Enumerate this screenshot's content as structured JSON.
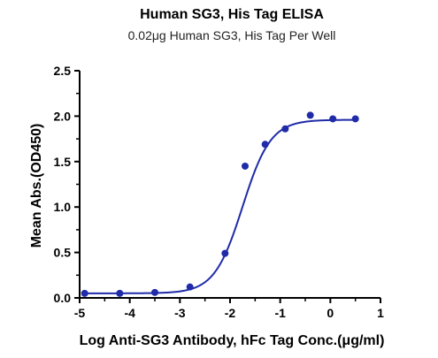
{
  "chart_data": {
    "type": "scatter",
    "title": "Human SG3, His Tag ELISA",
    "subtitle": "0.02μg Human SG3, His Tag Per Well",
    "xlabel": "Log Anti-SG3 Antibody, hFc Tag Conc.(μg/ml)",
    "ylabel": "Mean Abs.(OD450)",
    "xlim": [
      -5,
      1
    ],
    "ylim": [
      0,
      2.5
    ],
    "x_ticks": [
      -5,
      -4,
      -3,
      -2,
      -1,
      0,
      1
    ],
    "x_tick_labels": [
      "-5",
      "-4",
      "-3",
      "-2",
      "-1",
      "0",
      "1"
    ],
    "y_ticks": [
      0,
      0.5,
      1.0,
      1.5,
      2.0,
      2.5
    ],
    "y_tick_labels": [
      "0.0",
      "0.5",
      "1.0",
      "1.5",
      "2.0",
      "2.5"
    ],
    "grid": false,
    "legend": "none",
    "series": [
      {
        "color": "#1f2ba8",
        "marker": "circle",
        "x": [
          -4.9,
          -4.2,
          -3.5,
          -2.8,
          -2.1,
          -1.7,
          -1.3,
          -0.9,
          -0.4,
          0.05,
          0.5
        ],
        "y": [
          0.05,
          0.05,
          0.06,
          0.12,
          0.49,
          1.45,
          1.69,
          1.86,
          2.01,
          1.97,
          1.97
        ]
      }
    ],
    "fit": {
      "type": "4PL",
      "color": "#1f2ba8",
      "bottom": 0.05,
      "top": 1.96,
      "logEC50": -1.75,
      "hill": 1.55,
      "x_range": [
        -4.9,
        0.5
      ]
    }
  }
}
